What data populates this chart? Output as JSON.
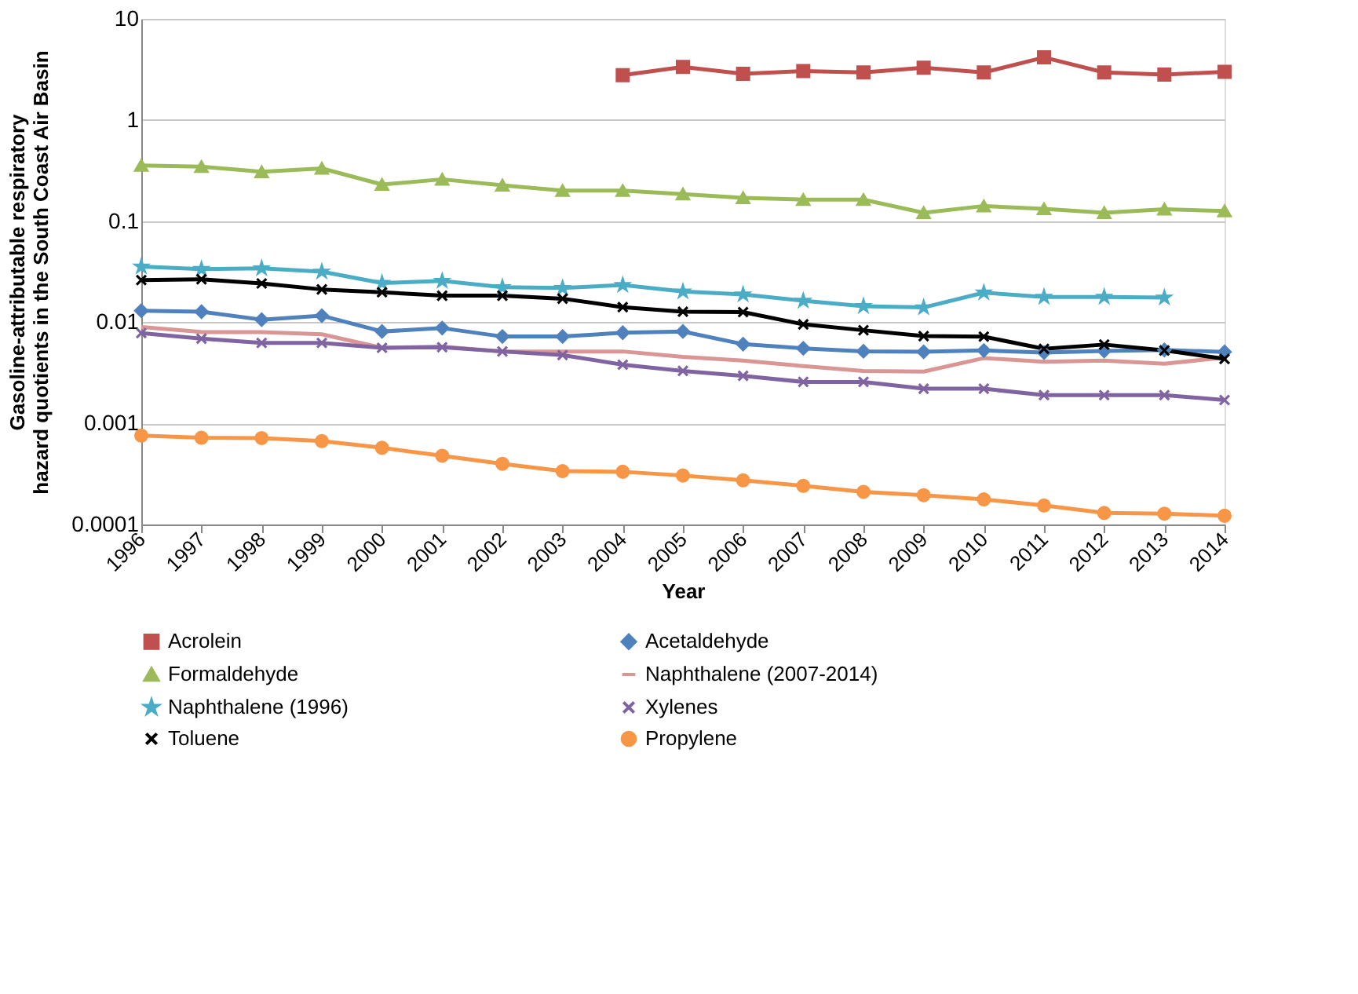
{
  "chart_data": {
    "type": "line",
    "xlabel": "Year",
    "ylabel": "Gasoline-attributable respiratory\nhazard quotients in the South Coast Air Basin",
    "categories": [
      "1996",
      "1997",
      "1998",
      "1999",
      "2000",
      "2001",
      "2002",
      "2003",
      "2004",
      "2005",
      "2006",
      "2007",
      "2008",
      "2009",
      "2010",
      "2011",
      "2012",
      "2013",
      "2014"
    ],
    "log": "y",
    "ylim": [
      0.0001,
      10
    ],
    "yticks": [
      0.0001,
      0.001,
      0.01,
      0.1,
      1,
      10
    ],
    "grid": "y",
    "legend": "bottom",
    "line_style": "solid",
    "series": [
      {
        "name": "Acrolein",
        "color": "#c0504d",
        "marker": "square",
        "values": [
          null,
          null,
          null,
          null,
          null,
          null,
          null,
          null,
          2.77,
          3.34,
          2.86,
          3.04,
          2.95,
          3.29,
          2.95,
          4.16,
          2.95,
          2.81,
          2.99
        ]
      },
      {
        "name": "Acetaldehyde",
        "color": "#4f81bd",
        "marker": "diamond",
        "values": [
          0.013,
          0.0127,
          0.0106,
          0.0116,
          0.0081,
          0.00875,
          0.00722,
          0.00722,
          0.00787,
          0.0081,
          0.00607,
          0.00552,
          0.00516,
          0.0051,
          0.00526,
          0.00501,
          0.0052,
          0.00532,
          0.00508
        ]
      },
      {
        "name": "Formaldehyde",
        "color": "#9bbb59",
        "marker": "triangle",
        "values": [
          0.355,
          0.345,
          0.307,
          0.332,
          0.23,
          0.259,
          0.226,
          0.2,
          0.2,
          0.185,
          0.17,
          0.163,
          0.163,
          0.121,
          0.141,
          0.132,
          0.121,
          0.131,
          0.126
        ]
      },
      {
        "name": "Naphthalene (2007-2014)",
        "color": "#d99694",
        "marker": "none",
        "values": [
          0.00895,
          0.008,
          0.008,
          0.0076,
          0.00558,
          0.00574,
          0.00514,
          0.00514,
          0.00514,
          0.00454,
          0.00417,
          0.00368,
          0.0033,
          0.00325,
          0.00442,
          0.00407,
          0.00417,
          0.00389,
          0.00447
        ]
      },
      {
        "name": "Naphthalene (1996)",
        "color": "#4bacc6",
        "marker": "star",
        "values": [
          0.0355,
          0.0335,
          0.0341,
          0.0316,
          0.0244,
          0.0256,
          0.0222,
          0.0218,
          0.0233,
          0.0201,
          0.0188,
          0.0163,
          0.0144,
          0.014,
          0.0196,
          0.0178,
          0.0178,
          0.0175,
          null
        ]
      },
      {
        "name": "Xylenes",
        "color": "#8064a2",
        "marker": "cross",
        "values": [
          0.0078,
          0.00688,
          0.00624,
          0.00624,
          0.00558,
          0.00566,
          0.00514,
          0.00473,
          0.0038,
          0.0033,
          0.00295,
          0.00257,
          0.00257,
          0.0022,
          0.0022,
          0.0019,
          0.0019,
          0.0019,
          0.0017
        ]
      },
      {
        "name": "Toluene",
        "color": "#000000",
        "marker": "cross",
        "values": [
          0.0261,
          0.0266,
          0.0242,
          0.0211,
          0.0198,
          0.0183,
          0.0183,
          0.0171,
          0.0141,
          0.0127,
          0.0126,
          0.00953,
          0.00833,
          0.00729,
          0.00721,
          0.00546,
          0.00601,
          0.00526,
          0.00434
        ]
      },
      {
        "name": "Propylene",
        "color": "#f79646",
        "marker": "circle",
        "values": [
          0.000756,
          0.00072,
          0.000715,
          0.000667,
          0.000573,
          0.000478,
          0.000398,
          0.000337,
          0.000332,
          0.000305,
          0.000273,
          0.000241,
          0.00021,
          0.000195,
          0.000177,
          0.000154,
          0.00013,
          0.000128,
          0.000122
        ]
      }
    ]
  }
}
